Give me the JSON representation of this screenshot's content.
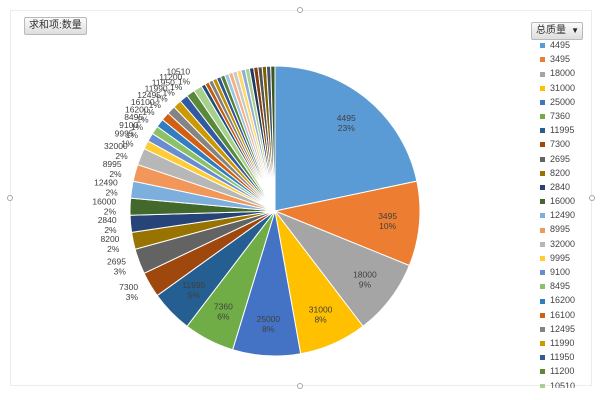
{
  "pivot": {
    "value_field_label": "求和项:数量",
    "legend_field_label": "总质量"
  },
  "chart_data": {
    "type": "pie",
    "title": "",
    "legend_position": "right",
    "categories": [
      "4495",
      "3495",
      "18000",
      "31000",
      "25000",
      "7360",
      "11995",
      "7300",
      "2695",
      "8200",
      "2840",
      "16000",
      "12490",
      "8995",
      "32000",
      "9995",
      "9100",
      "8495",
      "16200",
      "16100",
      "12495",
      "11990",
      "11950",
      "11200",
      "10510"
    ],
    "slices": [
      {
        "label": "4495",
        "percent": 23,
        "color": "#5b9bd5"
      },
      {
        "label": "3495",
        "percent": 10,
        "color": "#ed7d31"
      },
      {
        "label": "18000",
        "percent": 9,
        "color": "#a5a5a5"
      },
      {
        "label": "31000",
        "percent": 8,
        "color": "#ffc000"
      },
      {
        "label": "25000",
        "percent": 8,
        "color": "#4472c4"
      },
      {
        "label": "7360",
        "percent": 6,
        "color": "#70ad47"
      },
      {
        "label": "11995",
        "percent": 5,
        "color": "#255e91"
      },
      {
        "label": "7300",
        "percent": 3,
        "color": "#9e480e"
      },
      {
        "label": "2695",
        "percent": 3,
        "color": "#636363"
      },
      {
        "label": "8200",
        "percent": 2,
        "color": "#997300"
      },
      {
        "label": "2840",
        "percent": 2,
        "color": "#264478"
      },
      {
        "label": "16000",
        "percent": 2,
        "color": "#43682b"
      },
      {
        "label": "12490",
        "percent": 2,
        "color": "#7cafdd"
      },
      {
        "label": "8995",
        "percent": 2,
        "color": "#f1975a"
      },
      {
        "label": "32000",
        "percent": 2,
        "color": "#b7b7b7"
      },
      {
        "label": "9995",
        "percent": 1,
        "color": "#ffcd33"
      },
      {
        "label": "9100",
        "percent": 1,
        "color": "#698ed0"
      },
      {
        "label": "8495",
        "percent": 1,
        "color": "#8cc168"
      },
      {
        "label": "16200",
        "percent": 1,
        "color": "#327dc2"
      },
      {
        "label": "16100",
        "percent": 1,
        "color": "#d26012"
      },
      {
        "label": "12495",
        "percent": 1,
        "color": "#848484"
      },
      {
        "label": "11990",
        "percent": 1,
        "color": "#cc9a00"
      },
      {
        "label": "11950",
        "percent": 1,
        "color": "#335aa1"
      },
      {
        "label": "11200",
        "percent": 1,
        "color": "#5a8a39"
      },
      {
        "label": "10510",
        "percent": 1,
        "color": "#a8d08d"
      },
      {
        "percent": 0.5,
        "color": "#1f4e79"
      },
      {
        "percent": 0.5,
        "color": "#c55a11"
      },
      {
        "percent": 0.5,
        "color": "#7f7f7f"
      },
      {
        "percent": 0.5,
        "color": "#bf9000"
      },
      {
        "percent": 0.5,
        "color": "#2f5597"
      },
      {
        "percent": 0.5,
        "color": "#548235"
      },
      {
        "percent": 0.5,
        "color": "#9dc3e6"
      },
      {
        "percent": 0.5,
        "color": "#f4b183"
      },
      {
        "percent": 0.5,
        "color": "#c9c9c9"
      },
      {
        "percent": 0.5,
        "color": "#ffd966"
      },
      {
        "percent": 0.5,
        "color": "#8faadc"
      },
      {
        "percent": 0.5,
        "color": "#a9d18e"
      },
      {
        "percent": 0.5,
        "color": "#203864"
      },
      {
        "percent": 0.5,
        "color": "#843c0c"
      },
      {
        "percent": 0.5,
        "color": "#525252"
      },
      {
        "percent": 0.5,
        "color": "#7f6000"
      },
      {
        "percent": 0.5,
        "color": "#44546a"
      },
      {
        "percent": 0.5,
        "color": "#385723"
      }
    ]
  }
}
